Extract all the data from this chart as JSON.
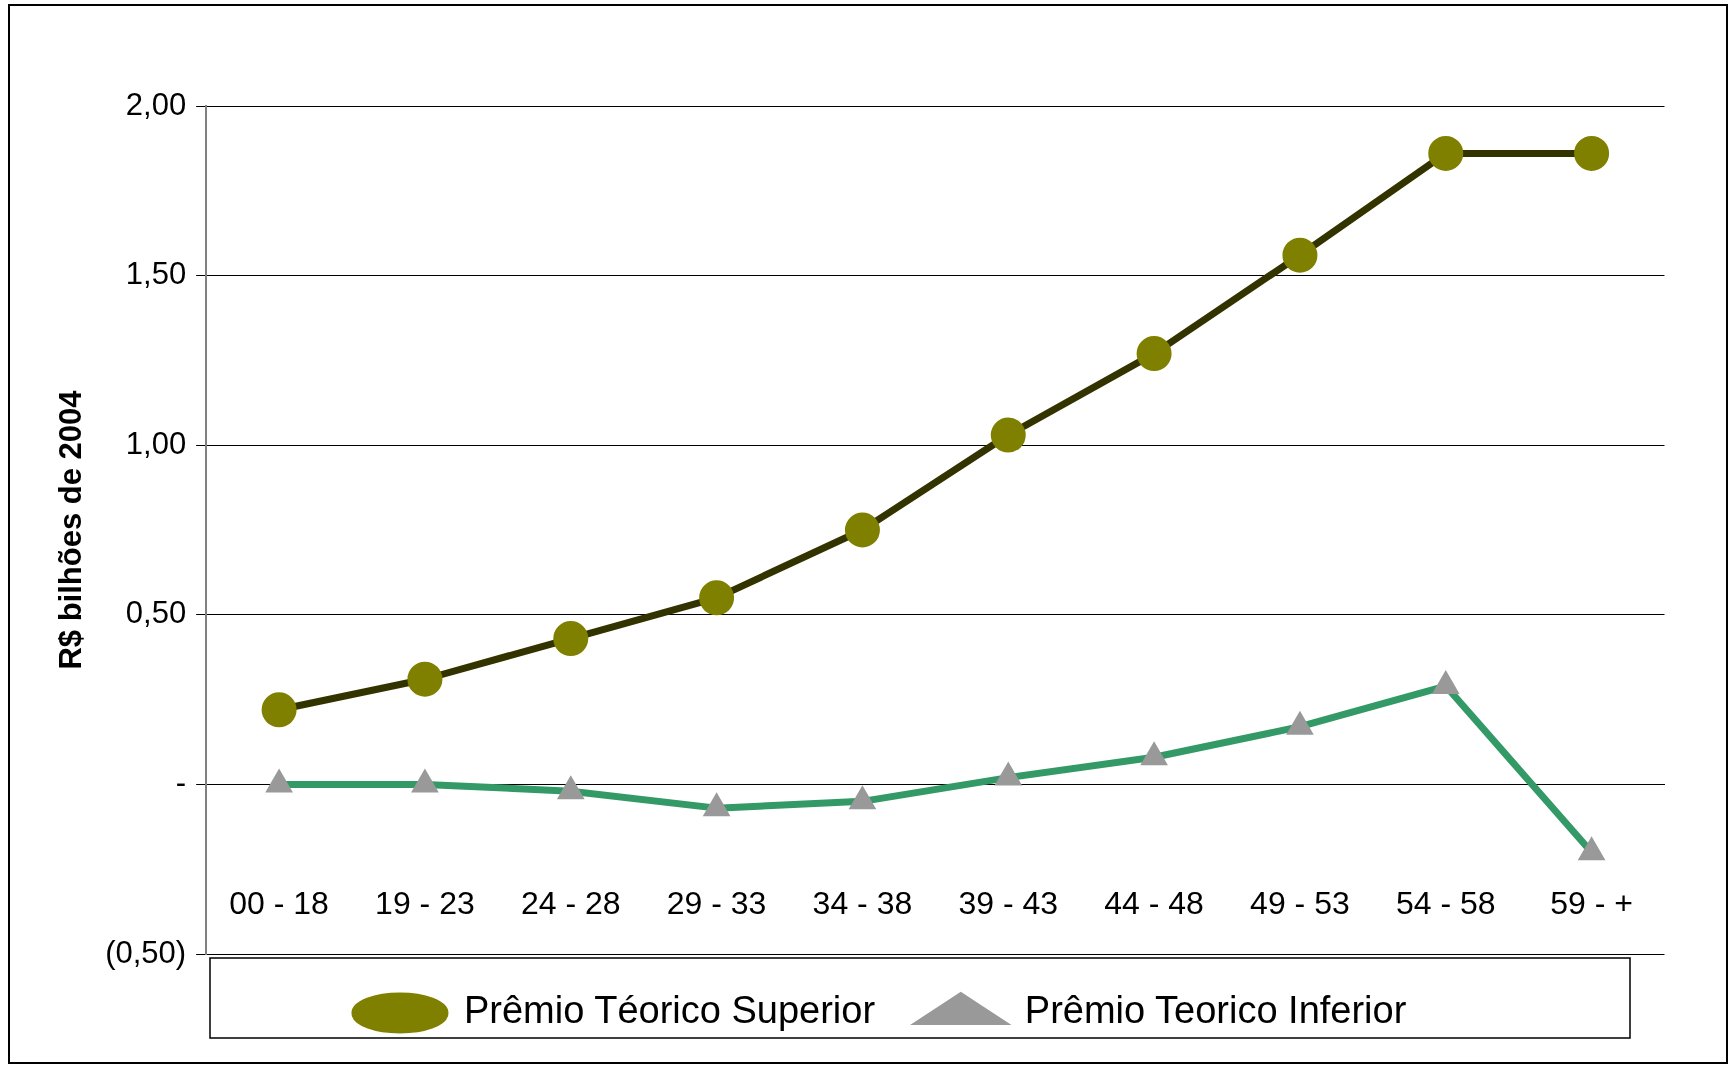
{
  "chart_data": {
    "type": "line",
    "ylabel": "R$ bilhões de 2004",
    "categories": [
      "00 - 18",
      "19 - 23",
      "24 - 28",
      "29 - 33",
      "34 - 38",
      "39 - 43",
      "44 - 48",
      "49 - 53",
      "54 - 58",
      "59 - +"
    ],
    "series": [
      {
        "name": "Prêmio Téorico Superior",
        "color": "#333300",
        "marker": "circle",
        "colors": [
          "#808000",
          "#808000",
          "#808000",
          "#808000",
          "#808000",
          "#808000",
          "#808000",
          "#808000",
          "#808000",
          "#808000"
        ],
        "values": [
          0.22,
          0.31,
          0.43,
          0.55,
          0.75,
          1.03,
          1.27,
          1.56,
          1.86,
          1.86
        ]
      },
      {
        "name": "Prêmio Teorico Inferior",
        "color": "#339966",
        "marker": "triangle",
        "colors": [
          "#999999",
          "#999999",
          "#999999",
          "#999999",
          "#999999",
          "#999999",
          "#999999",
          "#999999",
          "#999999",
          "#999999"
        ],
        "values": [
          0,
          0,
          -0.02,
          -0.07,
          -0.05,
          0.02,
          0.08,
          0.17,
          0.29,
          -0.2
        ]
      }
    ],
    "ylim": [
      -0.5,
      2
    ],
    "yticks": [
      {
        "value": -0.5,
        "label": "(0,50)"
      },
      {
        "value": 0,
        "label": "-"
      },
      {
        "value": 0.5,
        "label": "0,50"
      },
      {
        "value": 1,
        "label": "1,00"
      },
      {
        "value": 1.5,
        "label": "1,50"
      },
      {
        "value": 2,
        "label": "2,00"
      }
    ],
    "grid": "y",
    "legend": "bottom",
    "line_style": "solid"
  }
}
